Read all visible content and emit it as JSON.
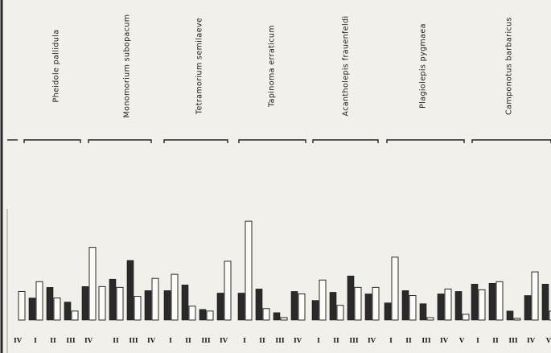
{
  "chart_data": {
    "type": "bar",
    "series": [
      {
        "fill": "dark"
      },
      {
        "fill": "light"
      }
    ],
    "groups": [
      {
        "species": "Pheidole pallidula",
        "stations": [
          {
            "label": "IV",
            "values": [
              null,
              35
            ]
          },
          {
            "label": "I",
            "values": [
              27,
              47
            ]
          },
          {
            "label": "II",
            "values": [
              40,
              27
            ]
          },
          {
            "label": "III",
            "values": [
              22,
              11
            ]
          },
          {
            "label": "IV",
            "values": [
              41,
              89
            ]
          }
        ]
      },
      {
        "species": "Monomorium subopacum",
        "stations": [
          {
            "label": "",
            "values": [
              null,
              41
            ]
          },
          {
            "label": "II",
            "values": [
              50,
              40
            ]
          },
          {
            "label": "III",
            "values": [
              73,
              29
            ]
          },
          {
            "label": "IV",
            "values": [
              36,
              51
            ]
          }
        ]
      },
      {
        "species": "Tetramorium semilaeve",
        "stations": [
          {
            "label": "I",
            "values": [
              36,
              56
            ]
          },
          {
            "label": "II",
            "values": [
              43,
              17
            ]
          },
          {
            "label": "III",
            "values": [
              13,
              11
            ]
          },
          {
            "label": "IV",
            "values": [
              33,
              72
            ]
          }
        ]
      },
      {
        "species": "Tapinoma erraticum",
        "stations": [
          {
            "label": "I",
            "values": [
              33,
              121
            ]
          },
          {
            "label": "II",
            "values": [
              38,
              14
            ]
          },
          {
            "label": "III",
            "values": [
              9,
              3
            ]
          },
          {
            "label": "IV",
            "values": [
              35,
              32
            ]
          }
        ]
      },
      {
        "species": "Acantholepis frauenfeldi",
        "stations": [
          {
            "label": "I",
            "values": [
              24,
              49
            ]
          },
          {
            "label": "II",
            "values": [
              34,
              18
            ]
          },
          {
            "label": "III",
            "values": [
              54,
              40
            ]
          },
          {
            "label": "IV",
            "values": [
              32,
              40
            ]
          }
        ]
      },
      {
        "species": "Plagiolepis pygmaea",
        "stations": [
          {
            "label": "I",
            "values": [
              21,
              77
            ]
          },
          {
            "label": "II",
            "values": [
              36,
              30
            ]
          },
          {
            "label": "III",
            "values": [
              20,
              3
            ]
          },
          {
            "label": "IV",
            "values": [
              32,
              38
            ]
          },
          {
            "label": "V",
            "values": [
              35,
              7
            ]
          }
        ]
      },
      {
        "species": "Camponotus barbaricus",
        "stations": [
          {
            "label": "I",
            "values": [
              44,
              37
            ]
          },
          {
            "label": "II",
            "values": [
              45,
              47
            ]
          },
          {
            "label": "III",
            "values": [
              11,
              2
            ]
          },
          {
            "label": "IV",
            "values": [
              30,
              59
            ]
          },
          {
            "label": "V",
            "values": [
              44,
              11
            ]
          }
        ]
      }
    ],
    "title": "",
    "xlabel": "",
    "ylabel": "",
    "ylim": [
      0,
      130
    ],
    "grid": false,
    "legend": "none"
  },
  "colors": {
    "background": "#f1f0eb",
    "dark_bar": "#2a2a2a",
    "light_bar": "#fbfbf8",
    "ink": "#1e1e1e"
  }
}
